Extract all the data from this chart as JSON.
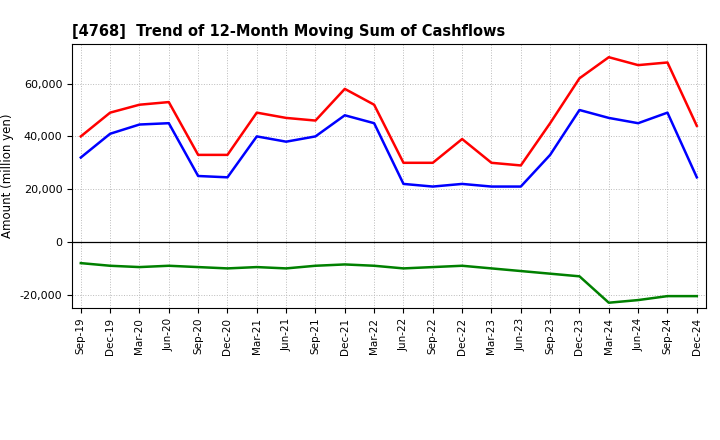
{
  "title": "[4768]  Trend of 12-Month Moving Sum of Cashflows",
  "ylabel": "Amount (million yen)",
  "x_labels": [
    "Sep-19",
    "Dec-19",
    "Mar-20",
    "Jun-20",
    "Sep-20",
    "Dec-20",
    "Mar-21",
    "Jun-21",
    "Sep-21",
    "Dec-21",
    "Mar-22",
    "Jun-22",
    "Sep-22",
    "Dec-22",
    "Mar-23",
    "Jun-23",
    "Sep-23",
    "Dec-23",
    "Mar-24",
    "Jun-24",
    "Sep-24",
    "Dec-24"
  ],
  "operating": [
    40000,
    49000,
    52000,
    53000,
    33000,
    33000,
    49000,
    47000,
    46000,
    58000,
    52000,
    30000,
    30000,
    39000,
    30000,
    29000,
    45000,
    62000,
    70000,
    67000,
    68000,
    44000
  ],
  "investing": [
    -8000,
    -9000,
    -9500,
    -9000,
    -9500,
    -10000,
    -9500,
    -10000,
    -9000,
    -8500,
    -9000,
    -10000,
    -9500,
    -9000,
    -10000,
    -11000,
    -12000,
    -13000,
    -23000,
    -22000,
    -20500,
    -20500
  ],
  "free": [
    32000,
    41000,
    44500,
    45000,
    25000,
    24500,
    40000,
    38000,
    40000,
    48000,
    45000,
    22000,
    21000,
    22000,
    21000,
    21000,
    33000,
    50000,
    47000,
    45000,
    49000,
    24500
  ],
  "operating_color": "#ff0000",
  "investing_color": "#008000",
  "free_color": "#0000ff",
  "ylim": [
    -25000,
    75000
  ],
  "yticks": [
    -20000,
    0,
    20000,
    40000,
    60000
  ],
  "background_color": "#ffffff",
  "grid_color": "#bbbbbb",
  "line_width": 1.8
}
